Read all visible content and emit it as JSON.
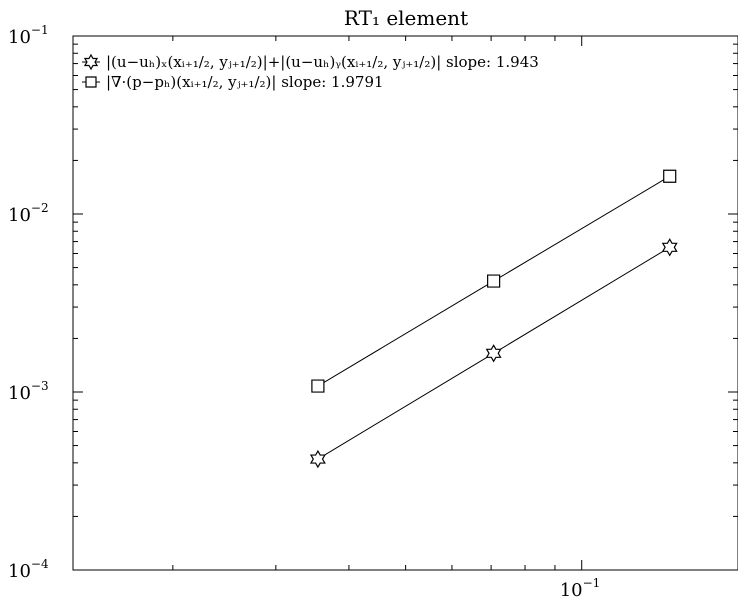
{
  "chart_data": {
    "type": "line",
    "title": "RT₁ element",
    "xscale": "log",
    "yscale": "log",
    "xlim": [
      0.0135,
      0.185
    ],
    "ylim": [
      0.0001,
      0.1
    ],
    "x_ticks": [
      {
        "base": "10",
        "exp": "−1",
        "value": 0.1
      }
    ],
    "y_ticks": [
      {
        "base": "10",
        "exp": "−1",
        "value": 0.1
      },
      {
        "base": "10",
        "exp": "−2",
        "value": 0.01
      },
      {
        "base": "10",
        "exp": "−3",
        "value": 0.001
      },
      {
        "base": "10",
        "exp": "−4",
        "value": 0.0001
      }
    ],
    "legend_position": "top-left",
    "grid": false,
    "series": [
      {
        "name": "|(u−uₕ)ₓ(xᵢ₊₁/₂, yⱼ₊₁/₂)|+|(u−uₕ)ᵧ(xᵢ₊₁/₂, yⱼ₊₁/₂)| slope: 1.943",
        "marker": "hexagram",
        "x": [
          0.0354,
          0.0707,
          0.1414
        ],
        "y": [
          0.00042,
          0.00165,
          0.0065
        ]
      },
      {
        "name": "|∇·(p−pₕ)(xᵢ₊₁/₂, yⱼ₊₁/₂)| slope: 1.9791",
        "marker": "square",
        "x": [
          0.0354,
          0.0707,
          0.1414
        ],
        "y": [
          0.00108,
          0.0042,
          0.0163
        ]
      }
    ]
  }
}
